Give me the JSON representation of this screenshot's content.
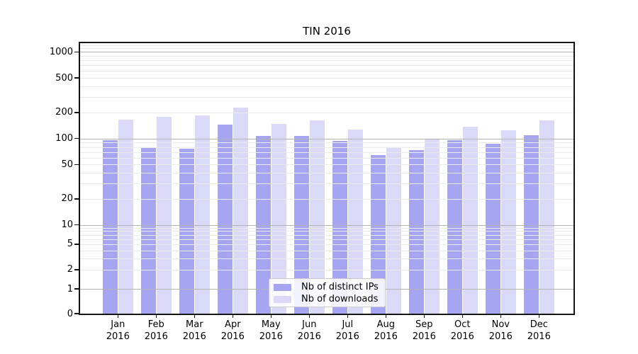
{
  "chart_data": {
    "type": "bar",
    "title": "TIN 2016",
    "x_months": [
      "Jan",
      "Feb",
      "Mar",
      "Apr",
      "May",
      "Jun",
      "Jul",
      "Aug",
      "Sep",
      "Oct",
      "Nov",
      "Dec"
    ],
    "x_year_label": "2016",
    "series": [
      {
        "name": "Nb of distinct IPs",
        "color": "#a5a5f2",
        "key": "distinct-ips",
        "values": [
          96,
          80,
          76,
          146,
          107,
          107,
          94,
          65,
          73,
          95,
          87,
          110
        ]
      },
      {
        "name": "Nb of downloads",
        "color": "#dadaf8",
        "key": "downloads",
        "values": [
          165,
          177,
          185,
          228,
          149,
          163,
          127,
          79,
          98,
          136,
          124,
          163
        ]
      }
    ],
    "y_scale": "symlog (logarithmic above 1, linear between 0 and 1)",
    "y_ticks": [
      0,
      1,
      2,
      5,
      10,
      20,
      50,
      100,
      200,
      500,
      1000
    ],
    "y_minor_gridlines": [
      2,
      3,
      4,
      5,
      6,
      7,
      8,
      9,
      20,
      30,
      40,
      50,
      60,
      70,
      80,
      90,
      200,
      300,
      400,
      500,
      600,
      700,
      800,
      900,
      1100,
      1200
    ],
    "y_major_gridlines": [
      1,
      10,
      100,
      1000
    ],
    "ylim": [
      0,
      1260
    ],
    "grid": "on, drawn above bars",
    "legend_position": "lower center inside plot"
  }
}
